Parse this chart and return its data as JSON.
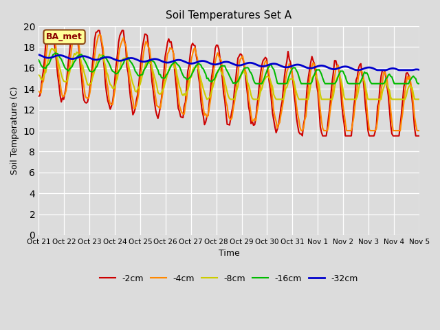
{
  "title": "Soil Temperatures Set A",
  "xlabel": "Time",
  "ylabel": "Soil Temperature (C)",
  "ylim": [
    0,
    20
  ],
  "yticks": [
    0,
    2,
    4,
    6,
    8,
    10,
    12,
    14,
    16,
    18,
    20
  ],
  "xtick_labels": [
    "Oct 21",
    "Oct 22",
    "Oct 23",
    "Oct 24",
    "Oct 25",
    "Oct 26",
    "Oct 27",
    "Oct 28",
    "Oct 29",
    "Oct 30",
    "Oct 31",
    "Nov 1",
    "Nov 2",
    "Nov 3",
    "Nov 4",
    "Nov 5"
  ],
  "background_color": "#dcdcdc",
  "plot_bg_color": "#dcdcdc",
  "legend_label": "BA_met",
  "series_labels": [
    "-2cm",
    "-4cm",
    "-8cm",
    "-16cm",
    "-32cm"
  ],
  "series_colors": [
    "#cc0000",
    "#ff8800",
    "#cccc00",
    "#00bb00",
    "#0000cc"
  ],
  "series_linewidths": [
    1.5,
    1.5,
    1.5,
    1.5,
    2.0
  ]
}
